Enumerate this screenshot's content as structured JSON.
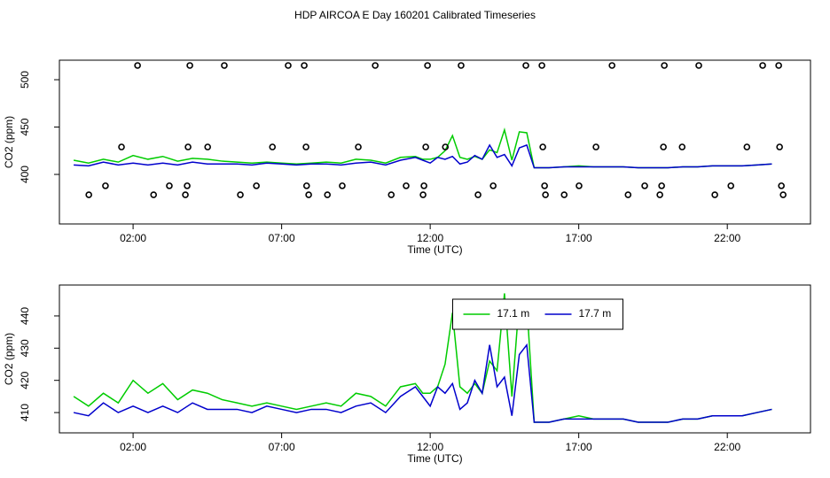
{
  "chart_data": [
    {
      "type": "line",
      "title": "HDP AIRCOA E  Day 160201  Calibrated Timeseries",
      "xlabel": "Time (UTC)",
      "ylabel": "CO2 (ppm)",
      "xlim": [
        -0.48,
        24.8
      ],
      "ylim": [
        347.7,
        520.6
      ],
      "xticks": [
        {
          "value": 2,
          "label": "02:00"
        },
        {
          "value": 7,
          "label": "07:00"
        },
        {
          "value": 12,
          "label": "12:00"
        },
        {
          "value": 17,
          "label": "17:00"
        },
        {
          "value": 22,
          "label": "22:00"
        }
      ],
      "yticks": [
        400,
        450,
        500
      ],
      "x": [
        0,
        0.5,
        1,
        1.5,
        2,
        2.5,
        3,
        3.5,
        4,
        4.5,
        5,
        5.5,
        6,
        6.5,
        7,
        7.5,
        8,
        8.5,
        9,
        9.5,
        10,
        10.5,
        11,
        11.5,
        11.75,
        12,
        12.25,
        12.5,
        12.75,
        13,
        13.25,
        13.5,
        13.75,
        14,
        14.25,
        14.5,
        14.75,
        15,
        15.25,
        15.5,
        16,
        16.5,
        17,
        17.5,
        18,
        18.5,
        19,
        19.5,
        20,
        20.5,
        21,
        21.5,
        22,
        22.5,
        23,
        23.5
      ],
      "series": [
        {
          "type": "line",
          "color": "#00cc00",
          "values": [
            415,
            412,
            416,
            413,
            420,
            416,
            419,
            414,
            417,
            416,
            414,
            413,
            412,
            413,
            412,
            411,
            412,
            413,
            412,
            416,
            415,
            412,
            418,
            419,
            416,
            416,
            418,
            425,
            441,
            418,
            416,
            419,
            416,
            426,
            423,
            447,
            415,
            445,
            444,
            407,
            407,
            408,
            409,
            408,
            408,
            408,
            407,
            407,
            407,
            408,
            408,
            409,
            409,
            409,
            410,
            411
          ]
        },
        {
          "type": "line",
          "color": "#0000cc",
          "values": [
            410,
            409,
            413,
            410,
            412,
            410,
            412,
            410,
            413,
            411,
            411,
            411,
            410,
            412,
            411,
            410,
            411,
            411,
            410,
            412,
            413,
            410,
            415,
            418,
            415,
            412,
            418,
            416,
            419,
            411,
            413,
            420,
            416,
            431,
            418,
            421,
            409,
            428,
            431,
            407,
            407,
            408,
            408,
            408,
            408,
            408,
            407,
            407,
            407,
            408,
            408,
            409,
            409,
            409,
            410,
            411
          ]
        },
        {
          "type": "scatter",
          "color": "#000000",
          "x": [
            2.15,
            3.91,
            5.07,
            7.22,
            7.76,
            10.15,
            11.91,
            13.04,
            15.22,
            15.76,
            18.12,
            19.88,
            21.04,
            23.19,
            23.73,
            1.61,
            3.85,
            4.51,
            6.69,
            7.82,
            9.58,
            11.85,
            12.51,
            15.79,
            17.58,
            19.85,
            20.48,
            22.66,
            23.76,
            1.07,
            3.22,
            3.82,
            6.15,
            7.84,
            9.04,
            11.19,
            11.79,
            14.12,
            15.85,
            17.01,
            19.22,
            19.79,
            22.12,
            23.82,
            0.51,
            2.69,
            3.76,
            5.61,
            7.91,
            8.54,
            10.69,
            11.76,
            13.61,
            15.88,
            16.51,
            18.66,
            19.73,
            21.58,
            23.88
          ],
          "values": [
            515,
            515,
            515,
            515,
            515,
            515,
            515,
            515,
            515,
            515,
            515,
            515,
            515,
            515,
            515,
            429,
            429,
            429,
            429,
            429,
            429,
            429,
            429,
            429,
            429,
            429,
            429,
            429,
            429,
            388,
            388,
            388,
            388,
            388,
            388,
            388,
            388,
            388,
            388,
            388,
            388,
            388,
            388,
            388,
            378.5,
            378.5,
            378.5,
            378.5,
            378.5,
            378.5,
            378.5,
            378.5,
            378.5,
            378.5,
            378.5,
            378.5,
            378.5,
            378.5,
            378.5
          ]
        }
      ]
    },
    {
      "type": "line",
      "xlabel": "Time (UTC)",
      "ylabel": "CO2 (ppm)",
      "xlim": [
        -0.48,
        24.8
      ],
      "ylim": [
        403.7,
        449.6
      ],
      "xticks": [
        {
          "value": 2,
          "label": "02:00"
        },
        {
          "value": 7,
          "label": "07:00"
        },
        {
          "value": 12,
          "label": "12:00"
        },
        {
          "value": 17,
          "label": "17:00"
        },
        {
          "value": 22,
          "label": "22:00"
        }
      ],
      "yticks": [
        410,
        420,
        430,
        440
      ],
      "legend": "top",
      "x": [
        0,
        0.5,
        1,
        1.5,
        2,
        2.5,
        3,
        3.5,
        4,
        4.5,
        5,
        5.5,
        6,
        6.5,
        7,
        7.5,
        8,
        8.5,
        9,
        9.5,
        10,
        10.5,
        11,
        11.5,
        11.75,
        12,
        12.25,
        12.5,
        12.75,
        13,
        13.25,
        13.5,
        13.75,
        14,
        14.25,
        14.5,
        14.75,
        15,
        15.25,
        15.5,
        16,
        16.5,
        17,
        17.5,
        18,
        18.5,
        19,
        19.5,
        20,
        20.5,
        21,
        21.5,
        22,
        22.5,
        23,
        23.5
      ],
      "series": [
        {
          "type": "line",
          "name": "17.1 m",
          "color": "#00cc00",
          "values": [
            415,
            412,
            416,
            413,
            420,
            416,
            419,
            414,
            417,
            416,
            414,
            413,
            412,
            413,
            412,
            411,
            412,
            413,
            412,
            416,
            415,
            412,
            418,
            419,
            416,
            416,
            418,
            425,
            441,
            418,
            416,
            419,
            416,
            426,
            423,
            447,
            415,
            445,
            444,
            407,
            407,
            408,
            409,
            408,
            408,
            408,
            407,
            407,
            407,
            408,
            408,
            409,
            409,
            409,
            410,
            411
          ]
        },
        {
          "type": "line",
          "name": "17.7 m",
          "color": "#0000cc",
          "values": [
            410,
            409,
            413,
            410,
            412,
            410,
            412,
            410,
            413,
            411,
            411,
            411,
            410,
            412,
            411,
            410,
            411,
            411,
            410,
            412,
            413,
            410,
            415,
            418,
            415,
            412,
            418,
            416,
            419,
            411,
            413,
            420,
            416,
            431,
            418,
            421,
            409,
            428,
            431,
            407,
            407,
            408,
            408,
            408,
            408,
            408,
            407,
            407,
            407,
            408,
            408,
            409,
            409,
            409,
            410,
            411
          ]
        }
      ]
    }
  ]
}
